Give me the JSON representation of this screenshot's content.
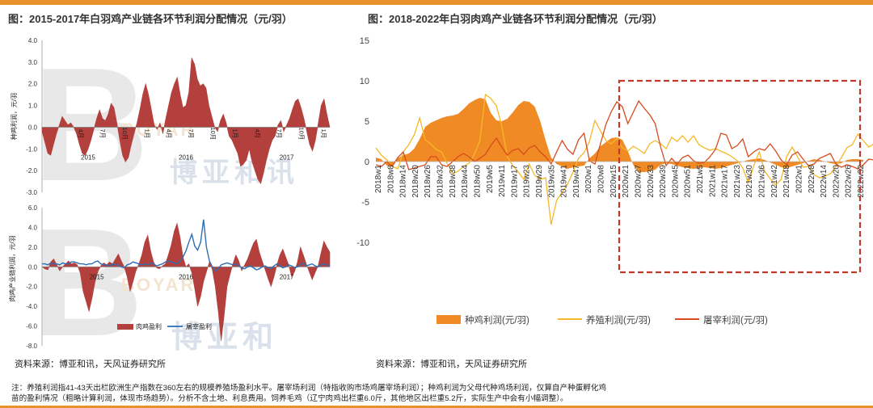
{
  "colors": {
    "accent": "#e8912e",
    "dark_red": "#b3403c",
    "blue": "#2e6db4",
    "breed": "#f08a24",
    "farm": "#f5b829",
    "slaughter": "#d84b1e",
    "box": "#c0392b"
  },
  "left_title": "图：2015-2017年白羽鸡产业链各环节利润分配情况（元/羽）",
  "right_title": "图：2018-2022年白羽肉鸡产业链各环节利润分配情况（元/羽）",
  "left_source": "资料来源：博亚和讯，天风证券研究所",
  "right_source": "资料来源：博亚和讯，天风证券研究所",
  "note_line1": "注：养殖利润指41-43天出栏欧洲生产指数在360左右的规模养殖场盈利水平。屠宰场利润（特指收购市场鸡屠宰场利润）；种鸡利润为父母代种鸡场利润，仅算自产种蛋孵化鸡",
  "note_line2": "苗的盈利情况（粗略计算利润，体现市场趋势）。分析不含土地、利息费用。饲养毛鸡（辽宁肉鸡出栏重6.0斤，其他地区出栏重5.2斤，实际生产中会有小幅调整）。",
  "watermark": {
    "left_top": "博亚和讯",
    "left_bottom": "博亚和",
    "ghost": "BOYAR"
  },
  "chart_data": [
    {
      "type": "area",
      "title": "",
      "ylabel": "种鸡利润，元/羽",
      "ylim": [
        -3.0,
        4.0
      ],
      "y_ticks": [
        "4.0",
        "3.0",
        "2.0",
        "1.0",
        "0.0",
        "-1.0",
        "-2.0",
        "-3.0"
      ],
      "x_month_labels": [
        "4月",
        "7月",
        "10月",
        "1月",
        "4月",
        "7月",
        "10月",
        "1月",
        "4月",
        "7月",
        "10月",
        "1月"
      ],
      "year_labels": [
        "2015",
        "2016",
        "2017"
      ],
      "series": [
        {
          "values": [
            -0.2,
            -0.7,
            -1.2,
            -1.3,
            -0.8,
            -0.3,
            0.1,
            0.5,
            0.3,
            0.1,
            0.2,
            0.0,
            -0.3,
            -0.8,
            -1.2,
            -1.3,
            -1.0,
            -0.6,
            -0.1,
            0.4,
            0.8,
            0.4,
            0.3,
            0.6,
            1.1,
            0.9,
            0.2,
            -0.6,
            -1.3,
            -1.6,
            -1.4,
            -0.8,
            -0.3,
            0.2,
            0.8,
            1.5,
            2.0,
            1.5,
            0.8,
            0.1,
            -0.1,
            0.2,
            -0.3,
            0.4,
            1.0,
            1.6,
            2.0,
            2.3,
            1.5,
            0.9,
            1.0,
            1.6,
            3.2,
            2.9,
            2.2,
            1.9,
            2.0,
            1.8,
            1.0,
            0.5,
            0.0,
            -0.2,
            0.3,
            0.6,
            0.2,
            -0.4,
            -0.6,
            -0.9,
            -1.2,
            -1.8,
            -1.7,
            -1.5,
            -1.0,
            -1.6,
            -2.0,
            -2.4,
            -2.6,
            -2.1,
            -1.5,
            -1.0,
            -0.6,
            -0.4,
            0.1,
            0.3,
            -0.2,
            0.1,
            0.4,
            0.8,
            1.2,
            1.3,
            0.9,
            0.4,
            -0.2,
            -0.8,
            -1.1,
            -0.6,
            0.2,
            1.0,
            1.3,
            0.6,
            0.0
          ]
        }
      ]
    },
    {
      "type": "area",
      "title": "",
      "ylabel": "肉鸡产业链利润，元/羽",
      "ylim": [
        -8.0,
        6.0
      ],
      "y_ticks": [
        "6.0",
        "4.0",
        "2.0",
        "0.0",
        "-2.0",
        "-4.0",
        "-6.0",
        "-8.0"
      ],
      "year_labels": [
        "2015",
        "2016",
        "2017"
      ],
      "legend": [
        "肉鸡盈利",
        "屠宰盈利"
      ],
      "series": [
        {
          "name": "肉鸡盈利",
          "values": [
            0.0,
            -0.2,
            -0.3,
            0.5,
            0.8,
            0.2,
            -0.4,
            0.0,
            0.3,
            0.6,
            0.3,
            0.4,
            0.2,
            -0.6,
            -2.5,
            -3.5,
            -4.5,
            -3.2,
            -1.6,
            -0.5,
            0.1,
            0.4,
            0.2,
            0.5,
            0.3,
            0.8,
            1.3,
            0.6,
            0.0,
            -1.0,
            -2.5,
            -1.5,
            -0.4,
            0.3,
            1.2,
            2.5,
            3.2,
            1.6,
            0.5,
            -0.1,
            -0.2,
            0.1,
            0.3,
            1.2,
            2.2,
            3.6,
            4.4,
            3.0,
            1.0,
            0.0,
            0.3,
            -0.6,
            -2.2,
            -4.0,
            -3.0,
            -1.5,
            -0.5,
            0.5,
            -0.3,
            -2.0,
            -4.5,
            -7.5,
            -5.0,
            -2.0,
            -0.8,
            0.3,
            1.2,
            0.6,
            -0.4,
            0.2,
            0.8,
            1.6,
            2.4,
            2.8,
            1.5,
            0.6,
            -0.3,
            -1.2,
            -2.0,
            -1.0,
            0.2,
            1.2,
            1.8,
            1.0,
            0.2,
            -1.0,
            -0.5,
            0.5,
            2.0,
            1.2,
            0.3,
            -0.5,
            -1.3,
            -0.6,
            0.1,
            1.4,
            2.6,
            2.0,
            1.5
          ]
        },
        {
          "name": "屠宰盈利",
          "values": [
            0.3,
            0.3,
            0.2,
            0.4,
            0.3,
            0.3,
            0.2,
            0.4,
            0.3,
            0.3,
            0.5,
            0.5,
            0.4,
            0.3,
            0.3,
            0.2,
            0.3,
            0.3,
            0.5,
            0.6,
            0.3,
            0.2,
            0.2,
            0.1,
            0.3,
            0.2,
            0.2,
            0.0,
            -0.1,
            0.2,
            0.3,
            0.5,
            0.4,
            0.3,
            0.2,
            0.3,
            0.2,
            0.4,
            0.3,
            0.1,
            0.2,
            0.3,
            0.5,
            0.6,
            0.5,
            0.4,
            0.3,
            0.6,
            1.0,
            1.6,
            2.5,
            3.3,
            2.1,
            1.7,
            2.5,
            4.8,
            2.0,
            0.6,
            0.0,
            -0.4,
            -0.2,
            0.2,
            0.3,
            0.4,
            0.3,
            0.2,
            0.3,
            0.1,
            -0.1,
            -0.2,
            0.0,
            0.1,
            -0.1,
            -0.3,
            -0.2,
            0.0,
            0.1,
            -0.1,
            -0.2,
            0.1,
            0.3,
            0.1,
            -0.1,
            0.0,
            0.2,
            0.1,
            -0.1,
            0.0,
            0.2,
            0.4,
            0.1,
            0.2,
            0.3,
            0.1,
            0.0,
            0.2,
            0.3,
            0.2,
            0.1
          ]
        }
      ]
    },
    {
      "type": "area",
      "title": "",
      "ylim": [
        -10,
        15
      ],
      "y_ticks": [
        "15",
        "10",
        "5",
        "0",
        "-5",
        "-10"
      ],
      "x_labels": [
        "2018w1",
        "2018w8",
        "2018w14",
        "2018w20",
        "2018w26",
        "2018w32",
        "2018w38",
        "2018w44",
        "2018w50",
        "2019w5",
        "2019w11",
        "2019w17",
        "2019w23",
        "2019w29",
        "2019w35",
        "2019w41",
        "2019w47",
        "2020w1",
        "2020w8",
        "2020w15",
        "2020w21",
        "2020w27",
        "2020w33",
        "2020w39",
        "2020w45",
        "2020w51",
        "2021w5",
        "2021w11",
        "2021w17",
        "2021w23",
        "2021w30",
        "2021w36",
        "2021w42",
        "2021w48",
        "2022w1",
        "2022w8",
        "2022w14",
        "2022w20",
        "2022w26",
        "2022w32"
      ],
      "legend": [
        "种鸡利润(元/羽)",
        "养殖利润(元/羽)",
        "屠宰利润(元/羽)"
      ],
      "highlight": "2020w39-2022w32",
      "series": [
        {
          "name": "种鸡利润(元/羽)",
          "values": [
            0.5,
            0.3,
            -0.5,
            -0.6,
            0.4,
            0.8,
            1.0,
            1.6,
            2.8,
            4.3,
            4.8,
            5.1,
            5.4,
            5.6,
            5.7,
            5.9,
            6.5,
            7.2,
            7.6,
            7.9,
            7.7,
            6.0,
            5.1,
            5.0,
            5.3,
            6.1,
            7.0,
            7.5,
            7.4,
            6.8,
            5.0,
            2.6,
            0.5,
            -0.3,
            -0.6,
            -0.9,
            -0.7,
            -0.6,
            -0.5,
            0.4,
            1.0,
            1.9,
            2.4,
            2.9,
            3.0,
            2.7,
            1.3,
            -0.4,
            -1.3,
            -1.3,
            -1.2,
            -1.0,
            -0.4,
            -0.2,
            -0.3,
            -0.5,
            -0.7,
            -0.8,
            -0.9,
            -0.8,
            -0.7,
            -0.8,
            -0.9,
            -0.8,
            -0.6,
            -0.4,
            -0.2,
            0.0,
            0.2,
            0.3,
            0.4,
            0.2,
            -0.1,
            -0.4,
            -0.7,
            -0.8,
            -0.6,
            -0.4,
            -0.2,
            0.1,
            0.3,
            0.2,
            0.0,
            -0.2,
            -0.3,
            -0.2,
            0.2,
            0.3,
            0.3,
            0.2
          ]
        },
        {
          "name": "养殖利润(元/羽)",
          "values": [
            1.7,
            0.8,
            0.2,
            -0.6,
            -0.9,
            1.2,
            2.1,
            3.3,
            5.4,
            2.7,
            2.2,
            1.5,
            1.2,
            -0.2,
            -1.5,
            -1.2,
            -0.6,
            -0.2,
            0.9,
            2.6,
            8.3,
            7.8,
            6.9,
            4.4,
            0.6,
            -0.5,
            -1.3,
            -2.2,
            -0.3,
            -1.7,
            -2.2,
            -2.0,
            -7.8,
            -4.8,
            -3.8,
            -2.8,
            -1.3,
            0.4,
            1.1,
            2.5,
            5.1,
            3.8,
            2.6,
            2.2,
            2.9,
            1.7,
            1.3,
            1.9,
            1.5,
            1.0,
            2.2,
            2.6,
            2.2,
            1.6,
            3.0,
            2.5,
            3.2,
            2.4,
            3.2,
            2.1,
            1.7,
            1.4,
            1.6,
            1.3,
            1.0,
            0.6,
            0.1,
            -0.8,
            -2.6,
            -0.5,
            1.2,
            -1.2,
            -2.1,
            -2.9,
            -2.2,
            0.6,
            1.8,
            0.6,
            -0.7,
            -0.6,
            -1.6,
            -2.0,
            -1.8,
            -1.5,
            -0.6,
            0.5,
            1.7,
            2.1,
            3.4,
            2.6,
            1.8,
            2.2,
            2.5,
            3.2,
            2.8,
            2.3,
            2.0,
            2.7,
            1.9,
            2.5
          ]
        },
        {
          "name": "屠宰利润(元/羽)",
          "values": [
            -0.4,
            -0.6,
            0.0,
            -0.6,
            0.5,
            1.2,
            -1.0,
            -0.8,
            -0.6,
            -0.4,
            0.6,
            0.6,
            -0.4,
            -0.6,
            0.0,
            0.6,
            1.0,
            0.6,
            0.0,
            0.4,
            0.9,
            2.0,
            2.9,
            1.8,
            0.8,
            1.4,
            1.6,
            0.9,
            1.7,
            2.0,
            1.2,
            0.6,
            -0.3,
            1.2,
            2.6,
            1.5,
            0.9,
            2.7,
            3.5,
            0.1,
            -0.3,
            2.2,
            4.6,
            6.2,
            7.4,
            6.8,
            4.7,
            6.1,
            7.5,
            6.6,
            5.8,
            4.7,
            1.8,
            -0.5,
            0.4,
            -0.3,
            0.5,
            0.8,
            0.1,
            -0.2,
            -0.1,
            0.6,
            1.5,
            3.5,
            3.3,
            1.6,
            2.0,
            2.8,
            0.6,
            1.2,
            1.6,
            1.4,
            2.2,
            1.3,
            0.2,
            -0.4,
            0.8,
            1.2,
            0.3,
            -0.5,
            -0.3,
            0.4,
            0.7,
            1.0,
            -0.3,
            -0.7,
            -0.4,
            -0.6,
            -0.9,
            -0.4,
            0.3,
            0.2,
            -0.5,
            -0.7,
            -0.4,
            -0.3,
            -1.0,
            -1.3,
            -0.9,
            -0.2
          ]
        }
      ]
    }
  ]
}
